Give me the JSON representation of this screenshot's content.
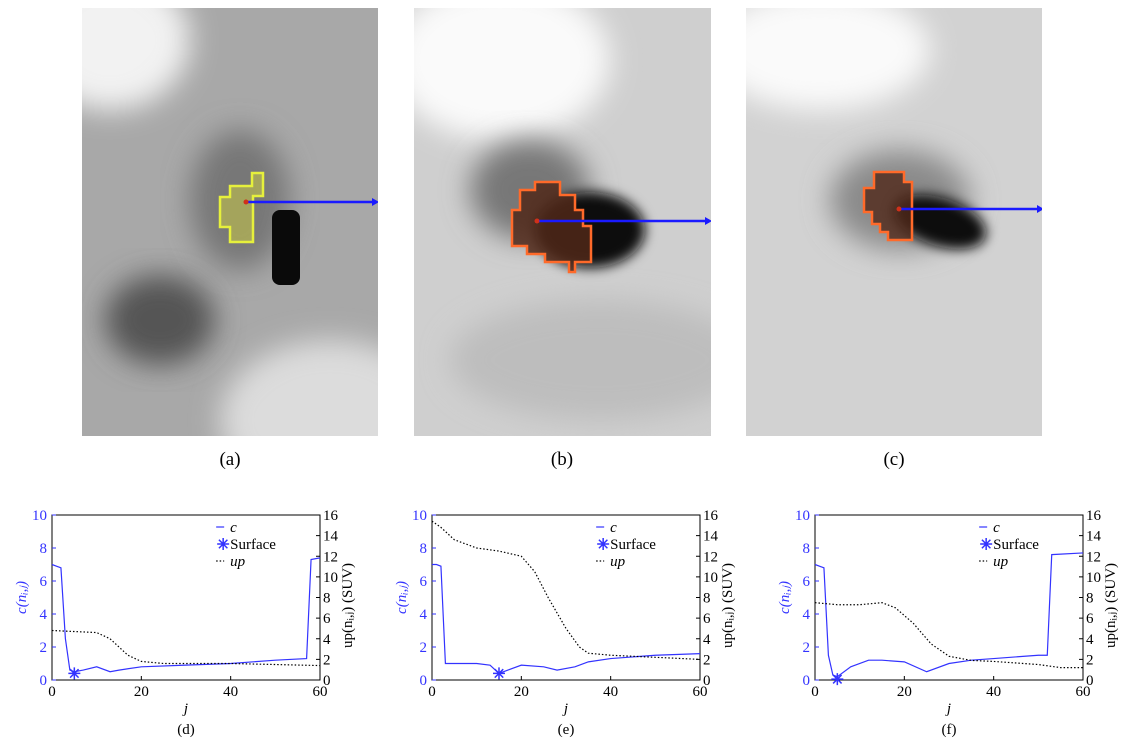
{
  "image_captions": [
    "(a)",
    "(b)",
    "(c)"
  ],
  "chart_data": [
    {
      "type": "line",
      "caption": "(d)",
      "x_label": "j",
      "y_label": "c(nᵢ,ⱼ)",
      "y2_label": "up(nᵢ,ⱼ) (SUV)",
      "xlim": [
        0,
        60
      ],
      "xticks": [
        0,
        20,
        40,
        60
      ],
      "ylim": [
        0,
        10
      ],
      "yticks": [
        0,
        2,
        4,
        6,
        8,
        10
      ],
      "y2lim": [
        0,
        16
      ],
      "y2ticks": [
        0,
        2,
        4,
        6,
        8,
        10,
        12,
        14,
        16
      ],
      "series": [
        {
          "name": "c",
          "color": "#3333ff",
          "axis": "y",
          "line_style": "solid",
          "x": [
            0,
            1,
            2,
            3,
            4,
            5,
            7,
            10,
            13,
            15,
            20,
            30,
            40,
            50,
            57,
            58,
            60
          ],
          "values": [
            7,
            6.9,
            6.8,
            2.5,
            0.6,
            0.5,
            0.6,
            0.8,
            0.5,
            0.6,
            0.8,
            0.9,
            1.0,
            1.2,
            1.3,
            7.3,
            7.4
          ]
        },
        {
          "name": "Surface",
          "color": "#3333ff",
          "axis": "y",
          "marker": "star",
          "x": [
            5
          ],
          "values": [
            0.4
          ]
        },
        {
          "name": "up",
          "color": "#000000",
          "axis": "y2",
          "line_style": "dotted",
          "x": [
            0,
            5,
            10,
            13,
            17,
            20,
            25,
            30,
            40,
            50,
            60
          ],
          "values": [
            4.8,
            4.7,
            4.6,
            4.0,
            2.4,
            1.8,
            1.6,
            1.6,
            1.6,
            1.5,
            1.4
          ]
        }
      ]
    },
    {
      "type": "line",
      "caption": "(e)",
      "x_label": "j",
      "y_label": "c(nᵢ,ⱼ)",
      "y2_label": "up(nᵢ,ⱼ) (SUV)",
      "xlim": [
        0,
        60
      ],
      "xticks": [
        0,
        20,
        40,
        60
      ],
      "ylim": [
        0,
        10
      ],
      "yticks": [
        0,
        2,
        4,
        6,
        8,
        10
      ],
      "y2lim": [
        0,
        16
      ],
      "y2ticks": [
        0,
        2,
        4,
        6,
        8,
        10,
        12,
        14,
        16
      ],
      "series": [
        {
          "name": "c",
          "color": "#3333ff",
          "axis": "y",
          "line_style": "solid",
          "x": [
            0,
            1,
            2,
            3,
            5,
            10,
            13,
            15,
            17,
            20,
            25,
            28,
            32,
            35,
            40,
            50,
            60
          ],
          "values": [
            7,
            7,
            6.9,
            1.0,
            1.0,
            1.0,
            0.9,
            0.4,
            0.6,
            0.9,
            0.8,
            0.6,
            0.8,
            1.1,
            1.3,
            1.5,
            1.6
          ]
        },
        {
          "name": "Surface",
          "color": "#3333ff",
          "axis": "y",
          "marker": "star",
          "x": [
            15
          ],
          "values": [
            0.4
          ]
        },
        {
          "name": "up",
          "color": "#000000",
          "axis": "y2",
          "line_style": "dotted",
          "x": [
            0,
            2,
            5,
            10,
            15,
            20,
            23,
            26,
            30,
            33,
            35,
            40,
            50,
            60
          ],
          "values": [
            15.4,
            14.8,
            13.6,
            12.8,
            12.5,
            12.0,
            10.5,
            8.0,
            5.0,
            3.2,
            2.6,
            2.4,
            2.2,
            2.0
          ]
        }
      ]
    },
    {
      "type": "line",
      "caption": "(f)",
      "x_label": "j",
      "y_label": "c(nᵢ,ⱼ)",
      "y2_label": "up(nᵢ,ⱼ) (SUV)",
      "xlim": [
        0,
        60
      ],
      "xticks": [
        0,
        20,
        40,
        60
      ],
      "ylim": [
        0,
        10
      ],
      "yticks": [
        0,
        2,
        4,
        6,
        8,
        10
      ],
      "y2lim": [
        0,
        16
      ],
      "y2ticks": [
        0,
        2,
        4,
        6,
        8,
        10,
        12,
        14,
        16
      ],
      "series": [
        {
          "name": "c",
          "color": "#3333ff",
          "axis": "y",
          "line_style": "solid",
          "x": [
            0,
            1,
            2,
            3,
            4,
            5,
            8,
            12,
            15,
            20,
            25,
            30,
            35,
            40,
            50,
            52,
            53,
            60
          ],
          "values": [
            7,
            6.9,
            6.8,
            1.5,
            0.3,
            0.2,
            0.8,
            1.2,
            1.2,
            1.1,
            0.5,
            1.0,
            1.2,
            1.3,
            1.5,
            1.5,
            7.6,
            7.7
          ]
        },
        {
          "name": "Surface",
          "color": "#3333ff",
          "axis": "y",
          "marker": "star",
          "x": [
            5
          ],
          "values": [
            0.05
          ]
        },
        {
          "name": "up",
          "color": "#000000",
          "axis": "y2",
          "line_style": "dotted",
          "x": [
            0,
            5,
            10,
            15,
            18,
            22,
            26,
            30,
            35,
            40,
            50,
            55,
            60
          ],
          "values": [
            7.5,
            7.3,
            7.3,
            7.5,
            7.0,
            5.5,
            3.5,
            2.3,
            1.9,
            1.8,
            1.5,
            1.2,
            1.2
          ]
        }
      ]
    }
  ]
}
